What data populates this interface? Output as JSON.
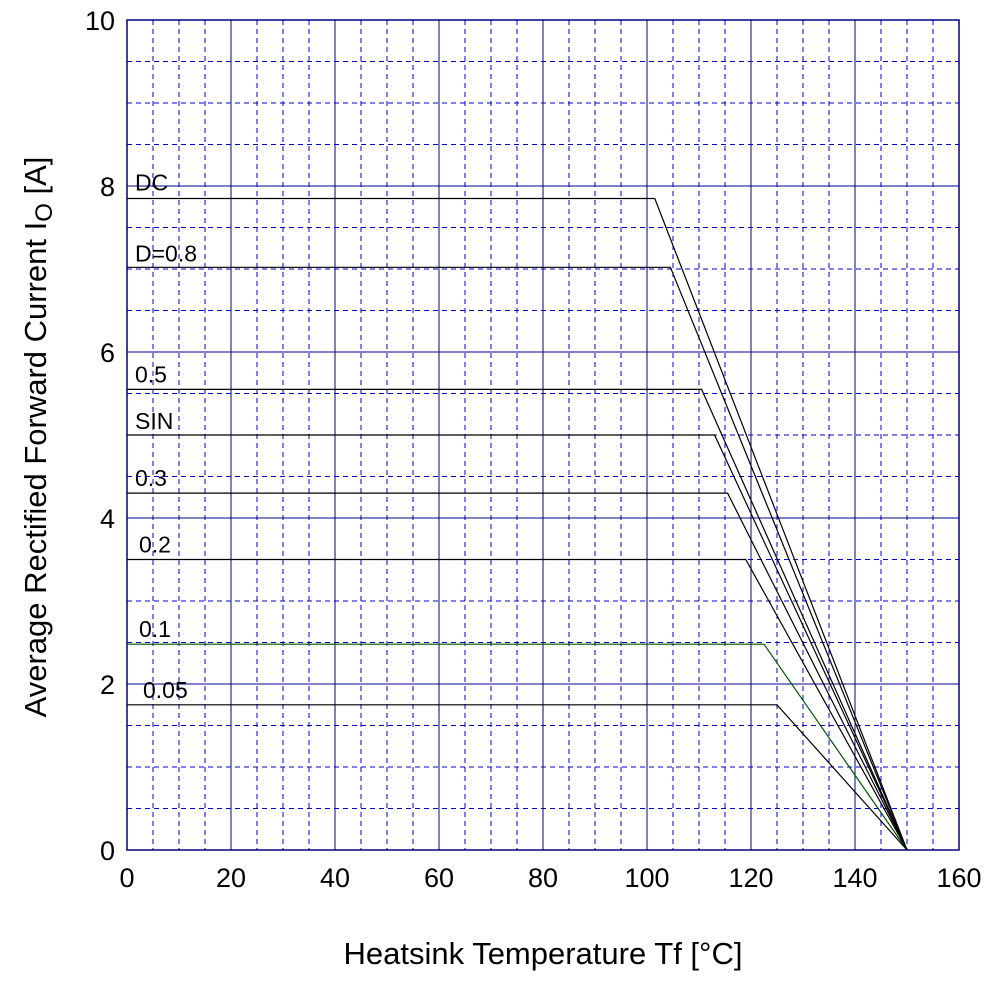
{
  "chart_data": {
    "type": "line",
    "xlabel": "Heatsink Temperature  Tf  [°C]",
    "ylabel": "Average Rectified Forward Current  IO  [A]",
    "ylabel_main": "Average Rectified Forward Current  I",
    "ylabel_sub": "O",
    "ylabel_unit": "  [A]",
    "xlim": [
      0,
      160
    ],
    "ylim": [
      0,
      10
    ],
    "x_ticks": [
      0,
      20,
      40,
      60,
      80,
      100,
      120,
      140,
      160
    ],
    "y_ticks": [
      0,
      2,
      4,
      6,
      8,
      10
    ],
    "grid": true,
    "colors": {
      "major_grid": "#00008b",
      "minor_grid": "#0000cd",
      "frame": "#000080",
      "series": "#000000",
      "series_0_1": "#005500"
    },
    "series": [
      {
        "name": "DC",
        "points": [
          [
            0,
            7.85
          ],
          [
            101.5,
            7.85
          ],
          [
            150,
            0
          ]
        ]
      },
      {
        "name": "D=0.8",
        "points": [
          [
            0,
            7.02
          ],
          [
            104.5,
            7.02
          ],
          [
            150,
            0
          ]
        ]
      },
      {
        "name": "0.5",
        "points": [
          [
            0,
            5.55
          ],
          [
            110.5,
            5.55
          ],
          [
            150,
            0
          ]
        ]
      },
      {
        "name": "SIN",
        "points": [
          [
            0,
            5.0
          ],
          [
            113,
            5.0
          ],
          [
            150,
            0
          ]
        ]
      },
      {
        "name": "0.3",
        "points": [
          [
            0,
            4.3
          ],
          [
            115.5,
            4.3
          ],
          [
            150,
            0
          ]
        ]
      },
      {
        "name": "0.2",
        "points": [
          [
            0,
            3.5
          ],
          [
            119,
            3.5
          ],
          [
            150,
            0
          ]
        ]
      },
      {
        "name": "0.1",
        "points": [
          [
            0,
            2.48
          ],
          [
            122.5,
            2.48
          ],
          [
            150,
            0
          ]
        ]
      },
      {
        "name": "0.05",
        "points": [
          [
            0,
            1.75
          ],
          [
            125,
            1.75
          ],
          [
            150,
            0
          ]
        ]
      }
    ]
  }
}
